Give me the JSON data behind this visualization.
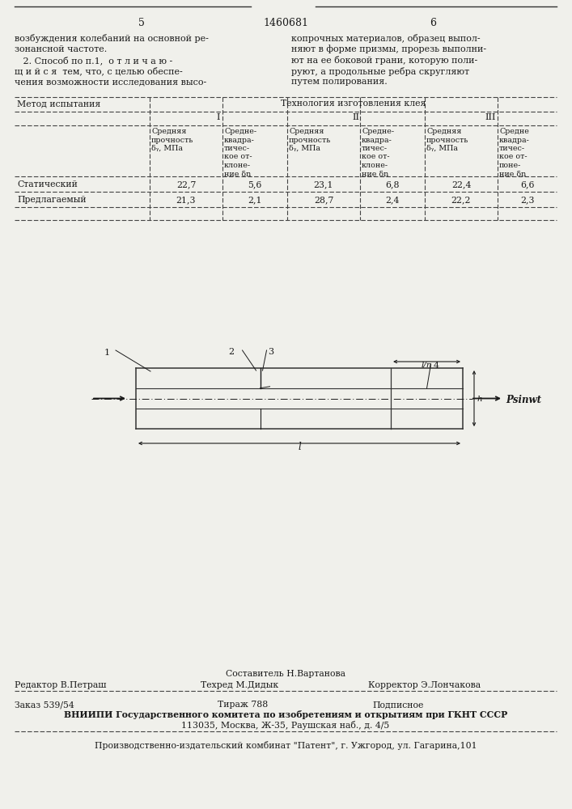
{
  "page_number_left": "5",
  "patent_number": "1460681",
  "page_number_right": "6",
  "top_left_text": [
    "возбуждения колебаний на основной ре-",
    "зонансной частоте.",
    "   2. Способ по п.1,  о т л и ч а ю -",
    "щ и й с я  тем, что, с целью обеспе-",
    "чения возможности исследования высо-"
  ],
  "top_right_text": [
    "копрочных материалов, образец выпол-",
    "няют в форме призмы, прорезь выполни-",
    "ют на ее боковой грани, которую поли-",
    "руют, а продольные ребра скругляют",
    "путем полирования."
  ],
  "table_header_left": "Метод испытания",
  "table_header_right": "Технология изготовления клея",
  "table_rows": [
    {
      "method": "Статический",
      "values": [
        "22,7",
        "5,6",
        "23,1",
        "6,8",
        "22,4",
        "6,6"
      ]
    },
    {
      "method": "Предлагаемый",
      "values": [
        "21,3",
        "2,1",
        "28,7",
        "2,4",
        "22,2",
        "2,3"
      ]
    }
  ],
  "footer_sestavitel": "Составитель Н.Вартанова",
  "footer_redaktor": "Редактор В.Петраш",
  "footer_tehred": "Техред М.Дидык",
  "footer_korrektor": "Корректор Э.Лончакова",
  "footer_zakaz": "Заказ 539/54",
  "footer_tirazh": "Тираж 788",
  "footer_podpisnoe": "Подписное",
  "footer_vnipi": "ВНИИПИ Государственного комитета по изобретениям и открытиям при ГКНТ СССР",
  "footer_address": "113035, Москва, Ж-35, Раушская наб., д. 4/5",
  "footer_kombinat": "Производственно-издательский комбинат \"Патент\", г. Ужгород, ул. Гагарина,101",
  "bg_color": "#f0f0eb",
  "text_color": "#1a1a1a",
  "line_color": "#333333",
  "dash_color": "#444444"
}
